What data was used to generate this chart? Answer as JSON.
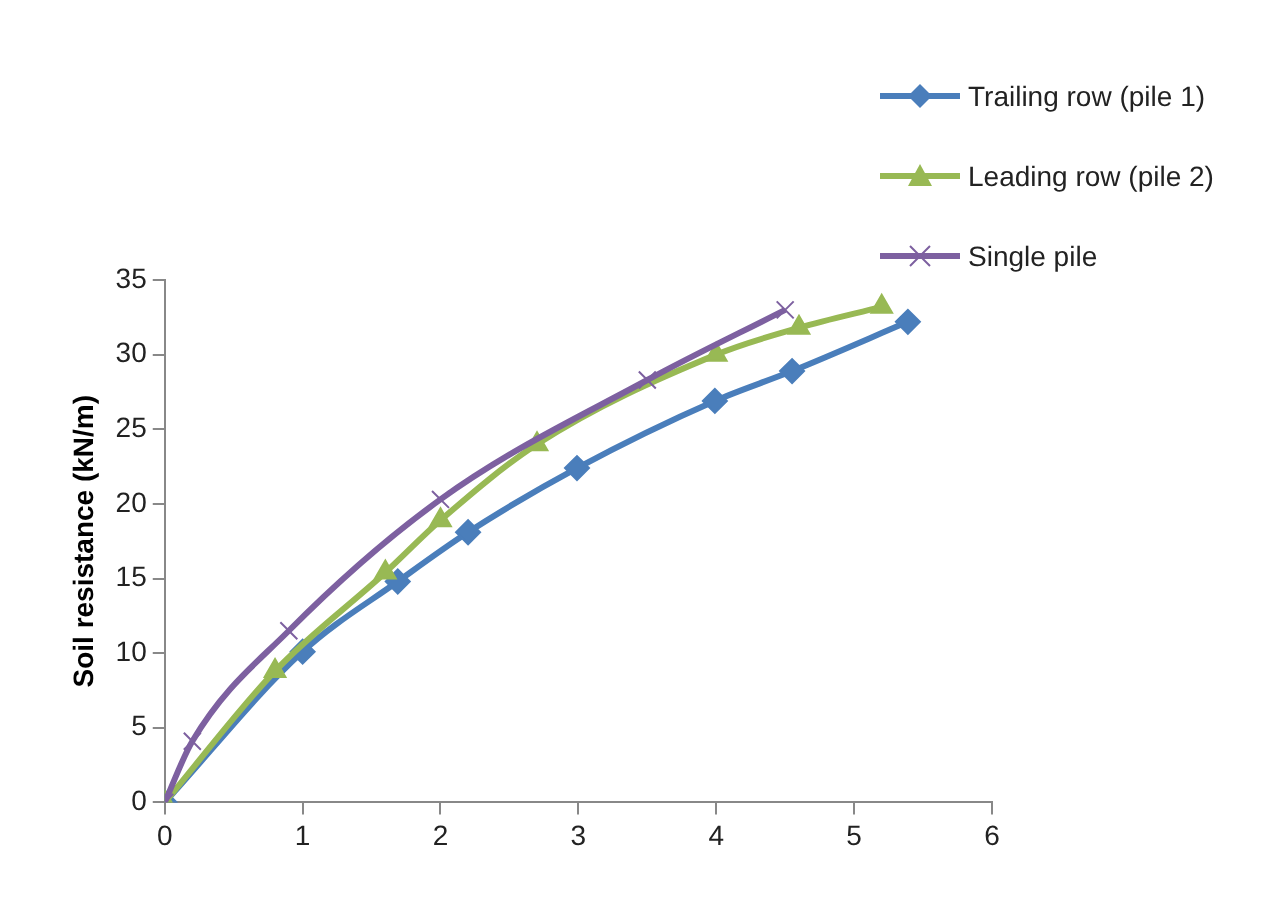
{
  "chart_data": {
    "type": "line",
    "ylabel": "Soil resistance (kN/m)",
    "xlim": [
      0,
      6
    ],
    "xticks": [
      0,
      1,
      2,
      3,
      4,
      5,
      6
    ],
    "ylim": [
      0,
      35
    ],
    "yticks": [
      0,
      5,
      10,
      15,
      20,
      25,
      30,
      35
    ],
    "grid": false,
    "legend": "top right",
    "series": [
      {
        "name": "Trailing row (pile 1)",
        "color": "#4a7ebb",
        "marker": "diamond",
        "x": [
          0,
          1.0,
          1.69,
          2.2,
          2.99,
          3.99,
          4.55,
          5.39
        ],
        "values": [
          0,
          10.1,
          14.8,
          18.1,
          22.4,
          26.9,
          28.9,
          32.2
        ]
      },
      {
        "name": "Leading row (pile 2)",
        "color": "#98b954",
        "marker": "triangle",
        "x": [
          0,
          0.8,
          1.6,
          2.0,
          2.7,
          4.0,
          4.6,
          5.2
        ],
        "values": [
          0,
          8.8,
          15.4,
          18.9,
          24,
          30,
          31.8,
          33.2
        ]
      },
      {
        "name": "Single pile",
        "color": "#7d60a0",
        "marker": "cross",
        "x": [
          0,
          0.2,
          0.9,
          2.0,
          3.5,
          4.5
        ],
        "values": [
          0,
          4.1,
          11.5,
          20.3,
          28.3,
          33
        ]
      }
    ]
  }
}
